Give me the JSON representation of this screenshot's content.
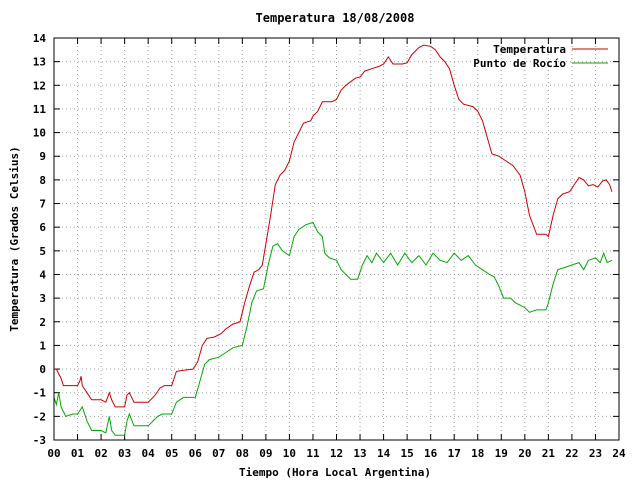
{
  "chart_data": {
    "type": "line",
    "title": "Temperatura 18/08/2008",
    "xlabel": "Tiempo (Hora Local Argentina)",
    "ylabel": "Temperatura (Grados Celsius)",
    "xlim": [
      0,
      24
    ],
    "ylim": [
      -3,
      14
    ],
    "x_ticks": [
      "00",
      "01",
      "02",
      "03",
      "04",
      "05",
      "06",
      "07",
      "08",
      "09",
      "10",
      "11",
      "12",
      "13",
      "14",
      "15",
      "16",
      "17",
      "18",
      "19",
      "20",
      "21",
      "22",
      "23",
      "24"
    ],
    "y_ticks": [
      "-3",
      "-2",
      "-1",
      "0",
      "1",
      "2",
      "3",
      "4",
      "5",
      "6",
      "7",
      "8",
      "9",
      "10",
      "11",
      "12",
      "13",
      "14"
    ],
    "grid": true,
    "legend_position": "top-right",
    "series": [
      {
        "name": "Temperatura",
        "color": "#cc0000",
        "points": [
          [
            0.0,
            0.0
          ],
          [
            0.1,
            0.0
          ],
          [
            0.3,
            -0.4
          ],
          [
            0.4,
            -0.7
          ],
          [
            0.6,
            -0.7
          ],
          [
            1.0,
            -0.7
          ],
          [
            1.1,
            -0.5
          ],
          [
            1.15,
            -0.3
          ],
          [
            1.2,
            -0.7
          ],
          [
            1.4,
            -1.0
          ],
          [
            1.6,
            -1.3
          ],
          [
            2.0,
            -1.3
          ],
          [
            2.2,
            -1.4
          ],
          [
            2.35,
            -1.0
          ],
          [
            2.45,
            -1.3
          ],
          [
            2.6,
            -1.6
          ],
          [
            3.0,
            -1.6
          ],
          [
            3.1,
            -1.1
          ],
          [
            3.2,
            -1.0
          ],
          [
            3.4,
            -1.4
          ],
          [
            4.0,
            -1.4
          ],
          [
            4.3,
            -1.1
          ],
          [
            4.5,
            -0.8
          ],
          [
            4.7,
            -0.7
          ],
          [
            5.0,
            -0.7
          ],
          [
            5.2,
            -0.1
          ],
          [
            5.5,
            -0.05
          ],
          [
            5.9,
            0.0
          ],
          [
            6.1,
            0.3
          ],
          [
            6.3,
            1.0
          ],
          [
            6.5,
            1.3
          ],
          [
            6.8,
            1.35
          ],
          [
            7.1,
            1.5
          ],
          [
            7.3,
            1.7
          ],
          [
            7.6,
            1.9
          ],
          [
            7.9,
            2.0
          ],
          [
            8.1,
            2.8
          ],
          [
            8.3,
            3.5
          ],
          [
            8.5,
            4.1
          ],
          [
            8.7,
            4.2
          ],
          [
            8.85,
            4.4
          ],
          [
            9.0,
            5.3
          ],
          [
            9.2,
            6.5
          ],
          [
            9.4,
            7.8
          ],
          [
            9.6,
            8.2
          ],
          [
            9.8,
            8.4
          ],
          [
            10.0,
            8.8
          ],
          [
            10.2,
            9.6
          ],
          [
            10.4,
            10.0
          ],
          [
            10.6,
            10.4
          ],
          [
            10.9,
            10.5
          ],
          [
            11.0,
            10.7
          ],
          [
            11.2,
            10.9
          ],
          [
            11.4,
            11.3
          ],
          [
            11.8,
            11.3
          ],
          [
            12.0,
            11.4
          ],
          [
            12.2,
            11.8
          ],
          [
            12.4,
            12.0
          ],
          [
            12.8,
            12.3
          ],
          [
            13.0,
            12.35
          ],
          [
            13.2,
            12.6
          ],
          [
            13.5,
            12.7
          ],
          [
            13.8,
            12.8
          ],
          [
            14.0,
            12.9
          ],
          [
            14.2,
            13.2
          ],
          [
            14.4,
            12.9
          ],
          [
            14.8,
            12.9
          ],
          [
            15.0,
            12.95
          ],
          [
            15.2,
            13.3
          ],
          [
            15.5,
            13.6
          ],
          [
            15.7,
            13.7
          ],
          [
            16.0,
            13.65
          ],
          [
            16.2,
            13.5
          ],
          [
            16.4,
            13.2
          ],
          [
            16.6,
            13.0
          ],
          [
            16.8,
            12.7
          ],
          [
            17.0,
            12.0
          ],
          [
            17.2,
            11.4
          ],
          [
            17.4,
            11.2
          ],
          [
            17.8,
            11.1
          ],
          [
            18.0,
            10.9
          ],
          [
            18.2,
            10.5
          ],
          [
            18.4,
            9.8
          ],
          [
            18.6,
            9.1
          ],
          [
            18.9,
            9.0
          ],
          [
            19.2,
            8.8
          ],
          [
            19.5,
            8.6
          ],
          [
            19.8,
            8.2
          ],
          [
            20.0,
            7.5
          ],
          [
            20.2,
            6.5
          ],
          [
            20.5,
            5.7
          ],
          [
            20.9,
            5.7
          ],
          [
            21.0,
            5.6
          ],
          [
            21.2,
            6.5
          ],
          [
            21.4,
            7.2
          ],
          [
            21.6,
            7.4
          ],
          [
            21.9,
            7.5
          ],
          [
            22.1,
            7.8
          ],
          [
            22.3,
            8.1
          ],
          [
            22.5,
            8.0
          ],
          [
            22.7,
            7.75
          ],
          [
            22.9,
            7.8
          ],
          [
            23.1,
            7.7
          ],
          [
            23.3,
            7.95
          ],
          [
            23.45,
            8.0
          ],
          [
            23.6,
            7.8
          ],
          [
            23.7,
            7.5
          ]
        ]
      },
      {
        "name": "Punto de Rocío",
        "color": "#00aa00",
        "points": [
          [
            0.0,
            -1.2
          ],
          [
            0.1,
            -1.5
          ],
          [
            0.2,
            -1.0
          ],
          [
            0.3,
            -1.6
          ],
          [
            0.5,
            -2.0
          ],
          [
            0.8,
            -1.9
          ],
          [
            1.0,
            -1.9
          ],
          [
            1.2,
            -1.6
          ],
          [
            1.4,
            -2.2
          ],
          [
            1.6,
            -2.6
          ],
          [
            2.0,
            -2.6
          ],
          [
            2.2,
            -2.7
          ],
          [
            2.35,
            -2.0
          ],
          [
            2.45,
            -2.6
          ],
          [
            2.6,
            -2.8
          ],
          [
            3.0,
            -2.8
          ],
          [
            3.1,
            -2.2
          ],
          [
            3.2,
            -1.9
          ],
          [
            3.4,
            -2.4
          ],
          [
            4.0,
            -2.4
          ],
          [
            4.2,
            -2.2
          ],
          [
            4.4,
            -2.0
          ],
          [
            4.6,
            -1.9
          ],
          [
            5.0,
            -1.9
          ],
          [
            5.2,
            -1.4
          ],
          [
            5.5,
            -1.2
          ],
          [
            6.0,
            -1.2
          ],
          [
            6.2,
            -0.5
          ],
          [
            6.4,
            0.2
          ],
          [
            6.6,
            0.4
          ],
          [
            7.0,
            0.5
          ],
          [
            7.3,
            0.7
          ],
          [
            7.6,
            0.9
          ],
          [
            8.0,
            1.0
          ],
          [
            8.2,
            1.8
          ],
          [
            8.4,
            2.8
          ],
          [
            8.6,
            3.3
          ],
          [
            8.9,
            3.4
          ],
          [
            9.1,
            4.4
          ],
          [
            9.3,
            5.2
          ],
          [
            9.5,
            5.3
          ],
          [
            9.7,
            5.0
          ],
          [
            10.0,
            4.8
          ],
          [
            10.2,
            5.6
          ],
          [
            10.4,
            5.9
          ],
          [
            10.7,
            6.1
          ],
          [
            11.0,
            6.2
          ],
          [
            11.2,
            5.8
          ],
          [
            11.4,
            5.6
          ],
          [
            11.5,
            4.9
          ],
          [
            11.7,
            4.7
          ],
          [
            12.0,
            4.6
          ],
          [
            12.2,
            4.2
          ],
          [
            12.4,
            4.0
          ],
          [
            12.6,
            3.8
          ],
          [
            12.9,
            3.8
          ],
          [
            13.1,
            4.4
          ],
          [
            13.3,
            4.8
          ],
          [
            13.5,
            4.5
          ],
          [
            13.7,
            4.9
          ],
          [
            14.0,
            4.5
          ],
          [
            14.3,
            4.9
          ],
          [
            14.6,
            4.4
          ],
          [
            14.9,
            4.9
          ],
          [
            15.2,
            4.5
          ],
          [
            15.5,
            4.8
          ],
          [
            15.8,
            4.4
          ],
          [
            16.1,
            4.9
          ],
          [
            16.4,
            4.6
          ],
          [
            16.7,
            4.5
          ],
          [
            17.0,
            4.9
          ],
          [
            17.3,
            4.6
          ],
          [
            17.6,
            4.8
          ],
          [
            17.9,
            4.4
          ],
          [
            18.2,
            4.2
          ],
          [
            18.5,
            4.0
          ],
          [
            18.7,
            3.9
          ],
          [
            18.9,
            3.5
          ],
          [
            19.1,
            3.0
          ],
          [
            19.4,
            3.0
          ],
          [
            19.6,
            2.8
          ],
          [
            19.8,
            2.7
          ],
          [
            20.0,
            2.6
          ],
          [
            20.2,
            2.4
          ],
          [
            20.5,
            2.5
          ],
          [
            20.9,
            2.5
          ],
          [
            21.0,
            2.8
          ],
          [
            21.2,
            3.6
          ],
          [
            21.4,
            4.2
          ],
          [
            21.7,
            4.3
          ],
          [
            22.0,
            4.4
          ],
          [
            22.3,
            4.5
          ],
          [
            22.5,
            4.2
          ],
          [
            22.7,
            4.6
          ],
          [
            23.0,
            4.7
          ],
          [
            23.2,
            4.5
          ],
          [
            23.35,
            4.9
          ],
          [
            23.5,
            4.5
          ],
          [
            23.7,
            4.6
          ]
        ]
      }
    ]
  }
}
